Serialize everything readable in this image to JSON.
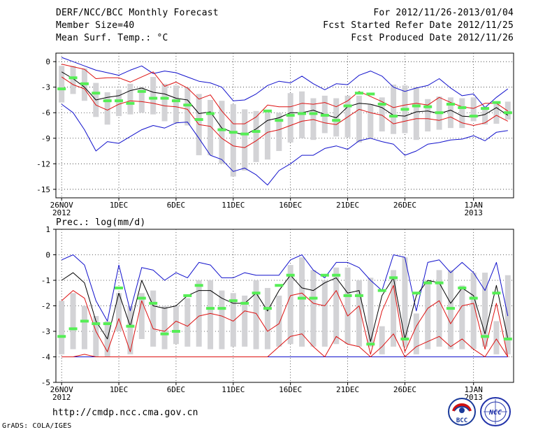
{
  "header": {
    "left_lines": [
      "DERF/NCC/BCC Monthly Forecast",
      "Member Size=40",
      "Mean Surf. Temp.: °C"
    ],
    "right_lines": [
      "For 2012/11/26-2013/01/04",
      "Fcst Started Refer Date 2012/11/25",
      "Fcst Produced Date 2012/11/26"
    ]
  },
  "footer": {
    "url": "http://cmdp.ncc.cma.gov.cn",
    "credit": "GrADS: COLA/IGES"
  },
  "logos": {
    "bcc_label": "BCC",
    "ncc_label": "NCC"
  },
  "colors": {
    "box": "#d3d3d6",
    "median": "#55ee55",
    "mean": "#000000",
    "red": "#dd1111",
    "blue": "#1111cc",
    "grid": "#333333"
  },
  "chart_data": [
    {
      "type": "box",
      "title": "Mean Surf. Temp.: °C",
      "ylim": [
        -16,
        1
      ],
      "yticks": [
        0,
        -3,
        -6,
        -9,
        -12,
        -15
      ],
      "xticks": [
        {
          "day": 0,
          "label": "26NOV",
          "sub": "2012"
        },
        {
          "day": 5,
          "label": "1DEC",
          "sub": ""
        },
        {
          "day": 10,
          "label": "6DEC",
          "sub": ""
        },
        {
          "day": 15,
          "label": "11DEC",
          "sub": ""
        },
        {
          "day": 20,
          "label": "16DEC",
          "sub": ""
        },
        {
          "day": 25,
          "label": "21DEC",
          "sub": ""
        },
        {
          "day": 30,
          "label": "26DEC",
          "sub": ""
        },
        {
          "day": 36,
          "label": "1JAN",
          "sub": "2013"
        }
      ],
      "days": 40,
      "box_top": [
        -0.5,
        -0.5,
        -0.8,
        -2.5,
        -3.6,
        -3.3,
        -2.6,
        -3.0,
        -1.8,
        -2.6,
        -2.8,
        -3.0,
        -3.8,
        -4.5,
        -4.6,
        -5.0,
        -5.6,
        -5.8,
        -6.0,
        -6.0,
        -3.7,
        -3.5,
        -4.3,
        -4.0,
        -4.3,
        -4.0,
        -4.0,
        -5.0,
        -4.2,
        -2.7,
        -2.8,
        -3.0,
        -4.4,
        -4.1,
        -4.2,
        -4.3,
        -4.2,
        -5.3,
        -4.8,
        -4.7
      ],
      "box_bottom": [
        -4.8,
        -3.8,
        -4.6,
        -6.5,
        -7.4,
        -6.4,
        -6.2,
        -6.0,
        -6.2,
        -7.0,
        -7.2,
        -7.5,
        -11.0,
        -11.0,
        -12.0,
        -13.5,
        -12.8,
        -11.8,
        -11.5,
        -10.5,
        -9.5,
        -9.0,
        -9.2,
        -8.4,
        -8.8,
        -8.9,
        -9.5,
        -9.0,
        -8.2,
        -8.5,
        -8.4,
        -9.2,
        -8.2,
        -8.0,
        -7.8,
        -7.8,
        -7.0,
        -7.4,
        -7.3,
        -6.8
      ],
      "median": [
        -3.2,
        -1.9,
        -2.6,
        -3.7,
        -4.6,
        -4.6,
        -4.9,
        -3.5,
        -4.3,
        -4.3,
        -4.6,
        -5.1,
        -6.8,
        -6.1,
        -8.0,
        -8.3,
        -8.5,
        -8.2,
        -5.8,
        -6.9,
        -6.3,
        -6.1,
        -6.1,
        -6.3,
        -6.9,
        -5.2,
        -3.7,
        -3.8,
        -5.0,
        -6.4,
        -5.6,
        -5.2,
        -5.3,
        -6.0,
        -5.0,
        -5.4,
        -6.4,
        -5.5,
        -4.8,
        -6.0
      ],
      "mean": [
        -1.2,
        -2.0,
        -3.0,
        -4.5,
        -4.2,
        -4.0,
        -3.4,
        -3.1,
        -3.6,
        -3.8,
        -4.3,
        -4.5,
        -6.1,
        -5.9,
        -7.8,
        -8.3,
        -8.6,
        -7.9,
        -6.9,
        -6.6,
        -6.0,
        -6.0,
        -5.7,
        -6.2,
        -6.6,
        -5.3,
        -4.9,
        -5.0,
        -5.4,
        -6.3,
        -6.4,
        -5.9,
        -5.8,
        -6.1,
        -5.7,
        -6.4,
        -6.5,
        -6.2,
        -5.4,
        -6.3
      ],
      "ens_max": [
        -0.3,
        -0.6,
        -0.9,
        -2.0,
        -1.9,
        -1.9,
        -2.4,
        -1.8,
        -1.2,
        -2.9,
        -2.4,
        -3.1,
        -4.4,
        -3.9,
        -5.8,
        -7.3,
        -7.3,
        -6.5,
        -5.1,
        -5.3,
        -5.3,
        -4.9,
        -5.0,
        -4.8,
        -5.3,
        -4.6,
        -3.5,
        -4.1,
        -4.7,
        -5.4,
        -5.1,
        -4.9,
        -5.1,
        -4.2,
        -4.8,
        -5.3,
        -5.5,
        -4.9,
        -4.9,
        -5.8
      ],
      "ens_min": [
        -1.8,
        -2.7,
        -3.2,
        -5.1,
        -5.7,
        -5.0,
        -4.6,
        -4.7,
        -4.9,
        -5.2,
        -5.3,
        -5.6,
        -7.4,
        -7.6,
        -9.0,
        -9.9,
        -10.1,
        -9.3,
        -8.3,
        -8.0,
        -7.5,
        -7.0,
        -6.8,
        -7.2,
        -7.4,
        -6.5,
        -5.6,
        -6.0,
        -6.3,
        -7.3,
        -7.0,
        -6.7,
        -6.7,
        -6.9,
        -6.5,
        -7.2,
        -7.5,
        -7.2,
        -6.3,
        -7.0
      ],
      "abs_max": [
        0.5,
        0.0,
        -0.5,
        -1.0,
        -1.3,
        -1.6,
        -1.0,
        -0.5,
        -1.4,
        -1.1,
        -1.3,
        -1.8,
        -2.3,
        -2.5,
        -3.0,
        -4.6,
        -4.5,
        -3.8,
        -2.8,
        -2.3,
        -2.5,
        -1.7,
        -2.6,
        -3.3,
        -2.6,
        -2.7,
        -1.6,
        -1.1,
        -1.7,
        -3.0,
        -3.5,
        -3.1,
        -2.8,
        -2.0,
        -3.1,
        -4.0,
        -3.8,
        -5.4,
        -4.2,
        -3.2
      ],
      "abs_min": [
        -5.0,
        -6.0,
        -8.0,
        -10.5,
        -9.4,
        -9.6,
        -8.8,
        -8.0,
        -7.5,
        -7.8,
        -7.2,
        -7.1,
        -9.0,
        -11.0,
        -11.5,
        -12.9,
        -12.5,
        -13.3,
        -14.5,
        -12.8,
        -12.0,
        -11.0,
        -11.0,
        -10.2,
        -9.9,
        -10.3,
        -9.3,
        -9.0,
        -9.4,
        -9.7,
        -11.0,
        -10.5,
        -9.7,
        -9.5,
        -9.2,
        -9.1,
        -8.7,
        -9.3,
        -8.3,
        -8.1
      ]
    },
    {
      "type": "box",
      "title": "Prec.: log(mm/d)",
      "ylim": [
        -5,
        1
      ],
      "yticks": [
        1,
        0,
        -1,
        -2,
        -3,
        -4,
        -5
      ],
      "xticks": [
        {
          "day": 0,
          "label": "26NOV",
          "sub": "2012"
        },
        {
          "day": 5,
          "label": "1DEC",
          "sub": ""
        },
        {
          "day": 10,
          "label": "6DEC",
          "sub": ""
        },
        {
          "day": 15,
          "label": "11DEC",
          "sub": ""
        },
        {
          "day": 20,
          "label": "16DEC",
          "sub": ""
        },
        {
          "day": 25,
          "label": "21DEC",
          "sub": ""
        },
        {
          "day": 30,
          "label": "26DEC",
          "sub": ""
        },
        {
          "day": 36,
          "label": "1JAN",
          "sub": "2013"
        }
      ],
      "days": 40,
      "box_top": [
        -1.8,
        -1.5,
        -2.0,
        -2.4,
        -2.6,
        -1.5,
        -2.0,
        -1.5,
        -1.4,
        -2.0,
        -2.0,
        -1.7,
        -1.0,
        -1.0,
        -1.4,
        -1.5,
        -1.6,
        -1.0,
        -1.3,
        -1.6,
        -0.4,
        -0.1,
        -0.6,
        -1.0,
        -0.5,
        -0.5,
        -1.0,
        -0.9,
        -2.8,
        -0.6,
        -0.1,
        -2.3,
        -1.0,
        -0.6,
        -0.6,
        -1.2,
        -0.7,
        -0.7,
        -2.6,
        -0.8
      ],
      "box_bottom": [
        -3.9,
        -3.7,
        -3.7,
        -4.0,
        -4.0,
        -3.0,
        -3.9,
        -3.3,
        -3.6,
        -3.7,
        -3.5,
        -3.6,
        -3.6,
        -3.7,
        -3.7,
        -3.6,
        -3.6,
        -3.7,
        -3.7,
        -3.6,
        -3.5,
        -3.6,
        -3.6,
        -3.6,
        -3.5,
        -3.5,
        -3.6,
        -3.6,
        -3.9,
        -3.6,
        -3.6,
        -3.9,
        -3.7,
        -3.6,
        -3.7,
        -3.7,
        -3.7,
        -3.6,
        -3.9,
        -3.9
      ],
      "median": [
        -3.2,
        -2.9,
        -2.6,
        -2.7,
        -2.7,
        -1.3,
        -2.8,
        -1.7,
        -1.9,
        -3.1,
        -3.0,
        -1.6,
        -1.2,
        -2.1,
        -2.1,
        -1.8,
        -1.9,
        -1.5,
        -2.1,
        -1.2,
        -0.8,
        -1.7,
        -1.7,
        -0.8,
        -0.8,
        -1.6,
        -1.6,
        -3.5,
        -1.4,
        -0.9,
        -3.3,
        -1.5,
        -1.1,
        -1.1,
        -2.1,
        -1.3,
        -1.7,
        -3.2,
        -1.5,
        -3.3
      ],
      "mean": [
        -1.0,
        -0.7,
        -1.1,
        -2.6,
        -3.3,
        -1.5,
        -2.8,
        -1.0,
        -2.0,
        -2.1,
        -2.0,
        -1.6,
        -1.4,
        -1.4,
        -1.7,
        -1.9,
        -1.9,
        -1.5,
        -2.2,
        -1.4,
        -0.8,
        -1.3,
        -1.4,
        -1.1,
        -0.9,
        -1.5,
        -1.4,
        -3.4,
        -1.6,
        -0.9,
        -3.3,
        -1.6,
        -1.0,
        -1.1,
        -1.9,
        -1.3,
        -1.6,
        -3.1,
        -1.2,
        -3.3
      ],
      "ens_max": [
        -1.8,
        -1.4,
        -1.7,
        -3.0,
        -3.8,
        -2.5,
        -3.8,
        -1.8,
        -2.9,
        -3.0,
        -2.6,
        -2.8,
        -2.4,
        -2.3,
        -2.4,
        -2.6,
        -2.2,
        -2.3,
        -3.0,
        -2.7,
        -1.6,
        -1.5,
        -1.9,
        -2.0,
        -1.4,
        -2.4,
        -2.0,
        -3.9,
        -2.2,
        -1.2,
        -3.8,
        -2.8,
        -2.1,
        -1.8,
        -2.7,
        -2.0,
        -1.9,
        -3.7,
        -1.9,
        -4.0
      ],
      "ens_min": [
        -4.0,
        -4.0,
        -3.9,
        -4.0,
        -4.0,
        -4.0,
        -4.0,
        -4.0,
        -4.0,
        -4.0,
        -4.0,
        -4.0,
        -4.0,
        -4.0,
        -4.0,
        -4.0,
        -4.0,
        -4.0,
        -4.0,
        -3.6,
        -3.2,
        -3.1,
        -3.6,
        -4.0,
        -3.2,
        -3.5,
        -3.6,
        -4.0,
        -3.6,
        -3.1,
        -4.0,
        -3.6,
        -3.4,
        -3.2,
        -3.6,
        -3.3,
        -3.7,
        -4.0,
        -3.3,
        -4.0
      ],
      "abs_max": [
        -0.2,
        0.0,
        -0.4,
        -1.8,
        -2.6,
        -0.4,
        -2.2,
        -0.5,
        -0.6,
        -1.0,
        -0.7,
        -0.9,
        -0.3,
        -0.4,
        -0.9,
        -0.9,
        -0.7,
        -0.8,
        -0.8,
        -0.8,
        -0.2,
        0.0,
        -0.6,
        -0.9,
        -0.3,
        -0.3,
        -0.5,
        -1.0,
        -1.4,
        0.0,
        -0.1,
        -2.2,
        -0.3,
        -0.2,
        -0.7,
        -0.3,
        -0.7,
        -1.4,
        -0.3,
        -2.4
      ],
      "abs_min": [
        -4.0,
        -4.0,
        -4.0,
        -4.0,
        -4.0,
        -4.0,
        -4.0,
        -4.0,
        -4.0,
        -4.0,
        -4.0,
        -4.0,
        -4.0,
        -4.0,
        -4.0,
        -4.0,
        -4.0,
        -4.0,
        -4.0,
        -4.0,
        -4.0,
        -4.0,
        -4.0,
        -4.0,
        -4.0,
        -4.0,
        -4.0,
        -4.0,
        -4.0,
        -4.0,
        -4.0,
        -4.0,
        -4.0,
        -4.0,
        -4.0,
        -4.0,
        -4.0,
        -4.0,
        -4.0,
        -4.0
      ]
    }
  ]
}
